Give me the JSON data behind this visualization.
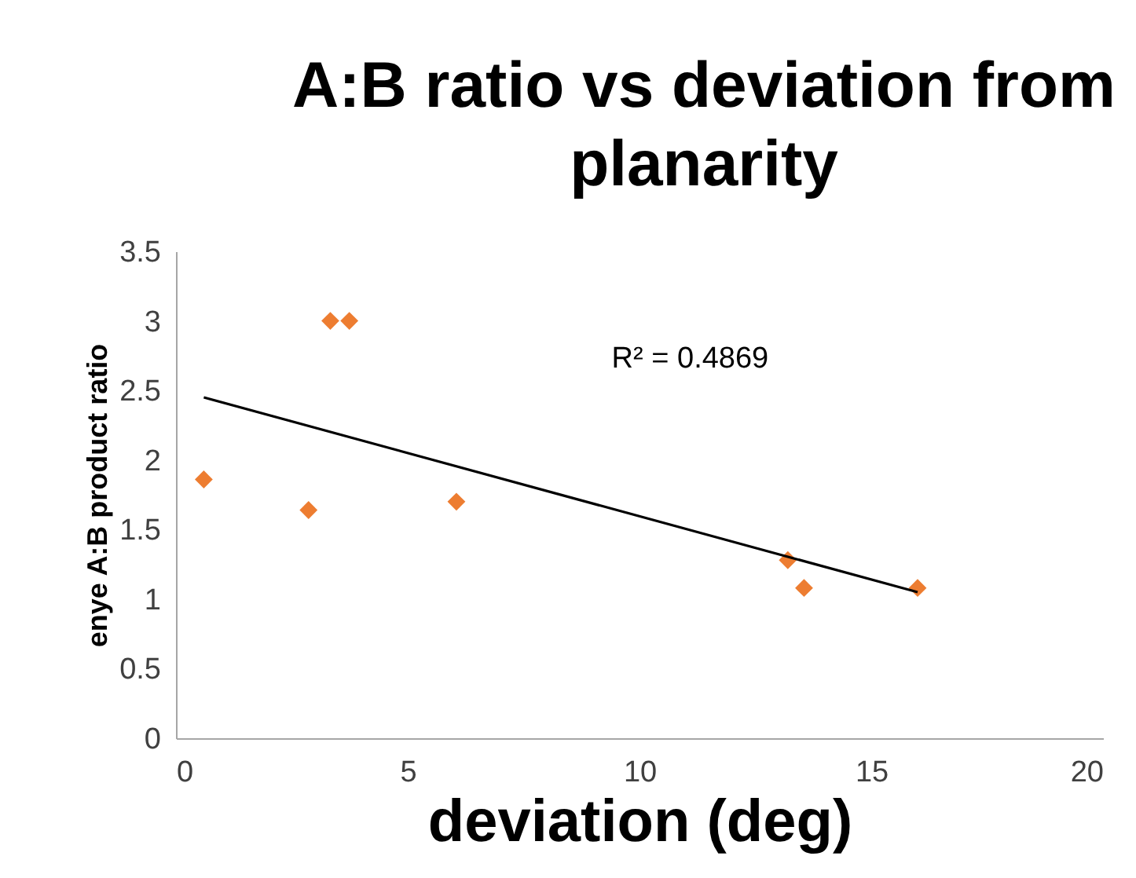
{
  "chart_data": {
    "type": "scatter",
    "title": "A:B ratio vs deviation from planarity",
    "xlabel": "deviation (deg)",
    "ylabel": "enye A:B product ratio",
    "series": [
      {
        "color": "#ed7d31",
        "x": [
          0.6,
          2.86,
          3.33,
          3.74,
          6.05,
          13.2,
          13.55,
          16.0
        ],
        "values": [
          1.86,
          1.64,
          3.0,
          3.0,
          1.7,
          1.28,
          1.08,
          1.08
        ]
      },
      {
        "type": "line",
        "marker": "none",
        "color": "#000000",
        "x": [
          0.6,
          16.0
        ],
        "values": [
          2.45,
          1.05
        ]
      }
    ],
    "annotations": [
      "R² = 0.4869"
    ],
    "marker": "diamond",
    "grid": false,
    "xlim": [
      0,
      20
    ],
    "xticks": [
      0,
      5,
      10,
      15,
      20
    ],
    "ylim": [
      0,
      3.5
    ],
    "yticks": [
      0,
      0.5,
      1,
      1.5,
      2,
      2.5,
      3,
      3.5
    ]
  }
}
